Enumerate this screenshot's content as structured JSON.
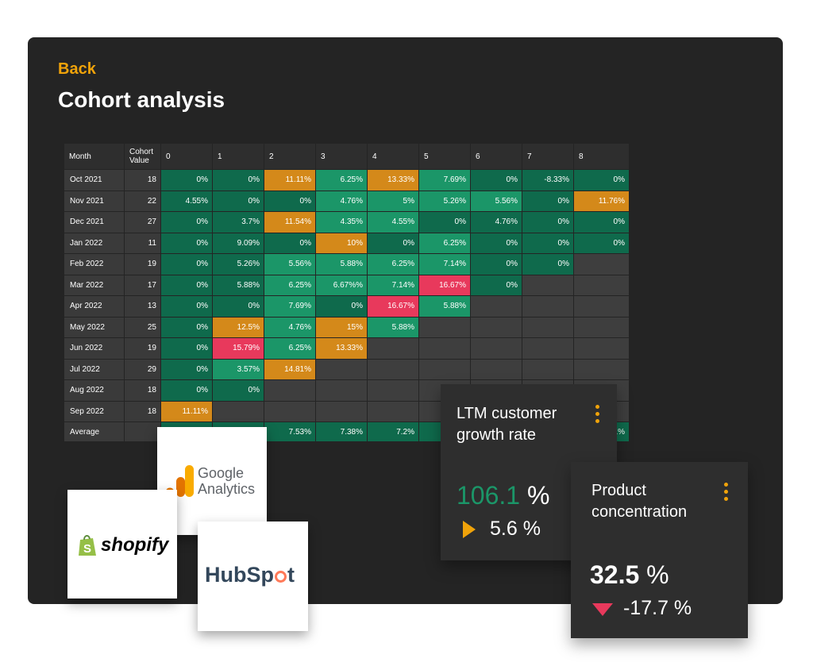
{
  "header": {
    "back_label": "Back",
    "title": "Cohort analysis"
  },
  "table": {
    "head_month": "Month",
    "head_cohort": "Cohort Value",
    "periods": [
      "0",
      "1",
      "2",
      "3",
      "4",
      "5",
      "6",
      "7",
      "8"
    ],
    "rows": [
      {
        "month": "Oct 2021",
        "cohort": "18",
        "cells": [
          [
            "0%",
            "gd"
          ],
          [
            "0%",
            "gd"
          ],
          [
            "11.11%",
            "or"
          ],
          [
            "6.25%",
            "gl"
          ],
          [
            "13.33%",
            "or"
          ],
          [
            "7.69%",
            "gl"
          ],
          [
            "0%",
            "gd"
          ],
          [
            "-8.33%",
            "gd"
          ],
          [
            "0%",
            "gd"
          ]
        ]
      },
      {
        "month": "Nov 2021",
        "cohort": "22",
        "cells": [
          [
            "4.55%",
            "gd"
          ],
          [
            "0%",
            "gd"
          ],
          [
            "0%",
            "gd"
          ],
          [
            "4.76%",
            "gl"
          ],
          [
            "5%",
            "gl"
          ],
          [
            "5.26%",
            "gl"
          ],
          [
            "5.56%",
            "gl"
          ],
          [
            "0%",
            "gd"
          ],
          [
            "11.76%",
            "or"
          ]
        ]
      },
      {
        "month": "Dec 2021",
        "cohort": "27",
        "cells": [
          [
            "0%",
            "gd"
          ],
          [
            "3.7%",
            "gd"
          ],
          [
            "11.54%",
            "or"
          ],
          [
            "4.35%",
            "gl"
          ],
          [
            "4.55%",
            "gl"
          ],
          [
            "0%",
            "gd"
          ],
          [
            "4.76%",
            "gd"
          ],
          [
            "0%",
            "gd"
          ],
          [
            "0%",
            "gd"
          ]
        ]
      },
      {
        "month": "Jan 2022",
        "cohort": "11",
        "cells": [
          [
            "0%",
            "gd"
          ],
          [
            "9.09%",
            "gd"
          ],
          [
            "0%",
            "gd"
          ],
          [
            "10%",
            "or"
          ],
          [
            "0%",
            "gd"
          ],
          [
            "6.25%",
            "gl"
          ],
          [
            "0%",
            "gd"
          ],
          [
            "0%",
            "gd"
          ],
          [
            "0%",
            "gd"
          ]
        ]
      },
      {
        "month": "Feb 2022",
        "cohort": "19",
        "cells": [
          [
            "0%",
            "gd"
          ],
          [
            "5.26%",
            "gd"
          ],
          [
            "5.56%",
            "gl"
          ],
          [
            "5.88%",
            "gl"
          ],
          [
            "6.25%",
            "gl"
          ],
          [
            "7.14%",
            "gl"
          ],
          [
            "0%",
            "gd"
          ],
          [
            "0%",
            "gd"
          ],
          [
            "",
            "em"
          ]
        ]
      },
      {
        "month": "Mar 2022",
        "cohort": "17",
        "cells": [
          [
            "0%",
            "gd"
          ],
          [
            "5.88%",
            "gd"
          ],
          [
            "6.25%",
            "gl"
          ],
          [
            "6.67%%",
            "gl"
          ],
          [
            "7.14%",
            "gl"
          ],
          [
            "16.67%",
            "rd"
          ],
          [
            "0%",
            "gd"
          ],
          [
            "",
            "em"
          ],
          [
            "",
            "em"
          ]
        ]
      },
      {
        "month": "Apr 2022",
        "cohort": "13",
        "cells": [
          [
            "0%",
            "gd"
          ],
          [
            "0%",
            "gd"
          ],
          [
            "7.69%",
            "gl"
          ],
          [
            "0%",
            "gd"
          ],
          [
            "16.67%",
            "rd"
          ],
          [
            "5.88%",
            "gl"
          ],
          [
            "",
            "em"
          ],
          [
            "",
            "em"
          ],
          [
            "",
            "em"
          ]
        ]
      },
      {
        "month": "May 2022",
        "cohort": "25",
        "cells": [
          [
            "0%",
            "gd"
          ],
          [
            "12.5%",
            "or"
          ],
          [
            "4.76%",
            "gl"
          ],
          [
            "15%",
            "or"
          ],
          [
            "5.88%",
            "gl"
          ],
          [
            "",
            "em"
          ],
          [
            "",
            "em"
          ],
          [
            "",
            "em"
          ],
          [
            "",
            "em"
          ]
        ]
      },
      {
        "month": "Jun 2022",
        "cohort": "19",
        "cells": [
          [
            "0%",
            "gd"
          ],
          [
            "15.79%",
            "rd"
          ],
          [
            "6.25%",
            "gl"
          ],
          [
            "13.33%",
            "or"
          ],
          [
            "",
            "em"
          ],
          [
            "",
            "em"
          ],
          [
            "",
            "em"
          ],
          [
            "",
            "em"
          ],
          [
            "",
            "em"
          ]
        ]
      },
      {
        "month": "Jul 2022",
        "cohort": "29",
        "cells": [
          [
            "0%",
            "gd"
          ],
          [
            "3.57%",
            "gl"
          ],
          [
            "14.81%",
            "or"
          ],
          [
            "",
            "em"
          ],
          [
            "",
            "em"
          ],
          [
            "",
            "em"
          ],
          [
            "",
            "em"
          ],
          [
            "",
            "em"
          ],
          [
            "",
            "em"
          ]
        ]
      },
      {
        "month": "Aug 2022",
        "cohort": "18",
        "cells": [
          [
            "0%",
            "gd"
          ],
          [
            "0%",
            "gd"
          ],
          [
            "",
            "em"
          ],
          [
            "",
            "em"
          ],
          [
            "",
            "em"
          ],
          [
            "",
            "em"
          ],
          [
            "",
            "em"
          ],
          [
            "",
            "em"
          ],
          [
            "",
            "em"
          ]
        ]
      },
      {
        "month": "Sep 2022",
        "cohort": "18",
        "cells": [
          [
            "11.11%",
            "or"
          ],
          [
            "",
            "em"
          ],
          [
            "",
            "em"
          ],
          [
            "",
            "em"
          ],
          [
            "",
            "em"
          ],
          [
            "",
            "em"
          ],
          [
            "",
            "em"
          ],
          [
            "",
            "em"
          ],
          [
            "",
            "em"
          ]
        ]
      },
      {
        "month": "Average",
        "cohort": "",
        "cells": [
          [
            "",
            "gd"
          ],
          [
            "%",
            "gd"
          ],
          [
            "7.53%",
            "gd"
          ],
          [
            "7.38%",
            "gd"
          ],
          [
            "7.2%",
            "gd"
          ],
          [
            "",
            "gd"
          ],
          [
            "",
            "gd"
          ],
          [
            "",
            "gd"
          ],
          [
            "51%",
            "gd"
          ]
        ]
      }
    ]
  },
  "logos": {
    "google_line1": "Google",
    "google_line2": "Analytics",
    "shopify": "shopify",
    "hubspot_a": "HubSp",
    "hubspot_b": "t"
  },
  "card_ltm": {
    "title_line1": "LTM customer",
    "title_line2": "growth rate",
    "value": "106.1",
    "unit": "%",
    "change": "5.6 %"
  },
  "card_product": {
    "title_line1": "Product",
    "title_line2": "concentration",
    "value": "32.5",
    "unit": "%",
    "change": "-17.7 %"
  },
  "colors": {
    "accent": "#f0a30a",
    "green": "#1b9668",
    "dark_green": "#0f6a4c",
    "orange": "#d4891a",
    "red": "#e8395c"
  }
}
